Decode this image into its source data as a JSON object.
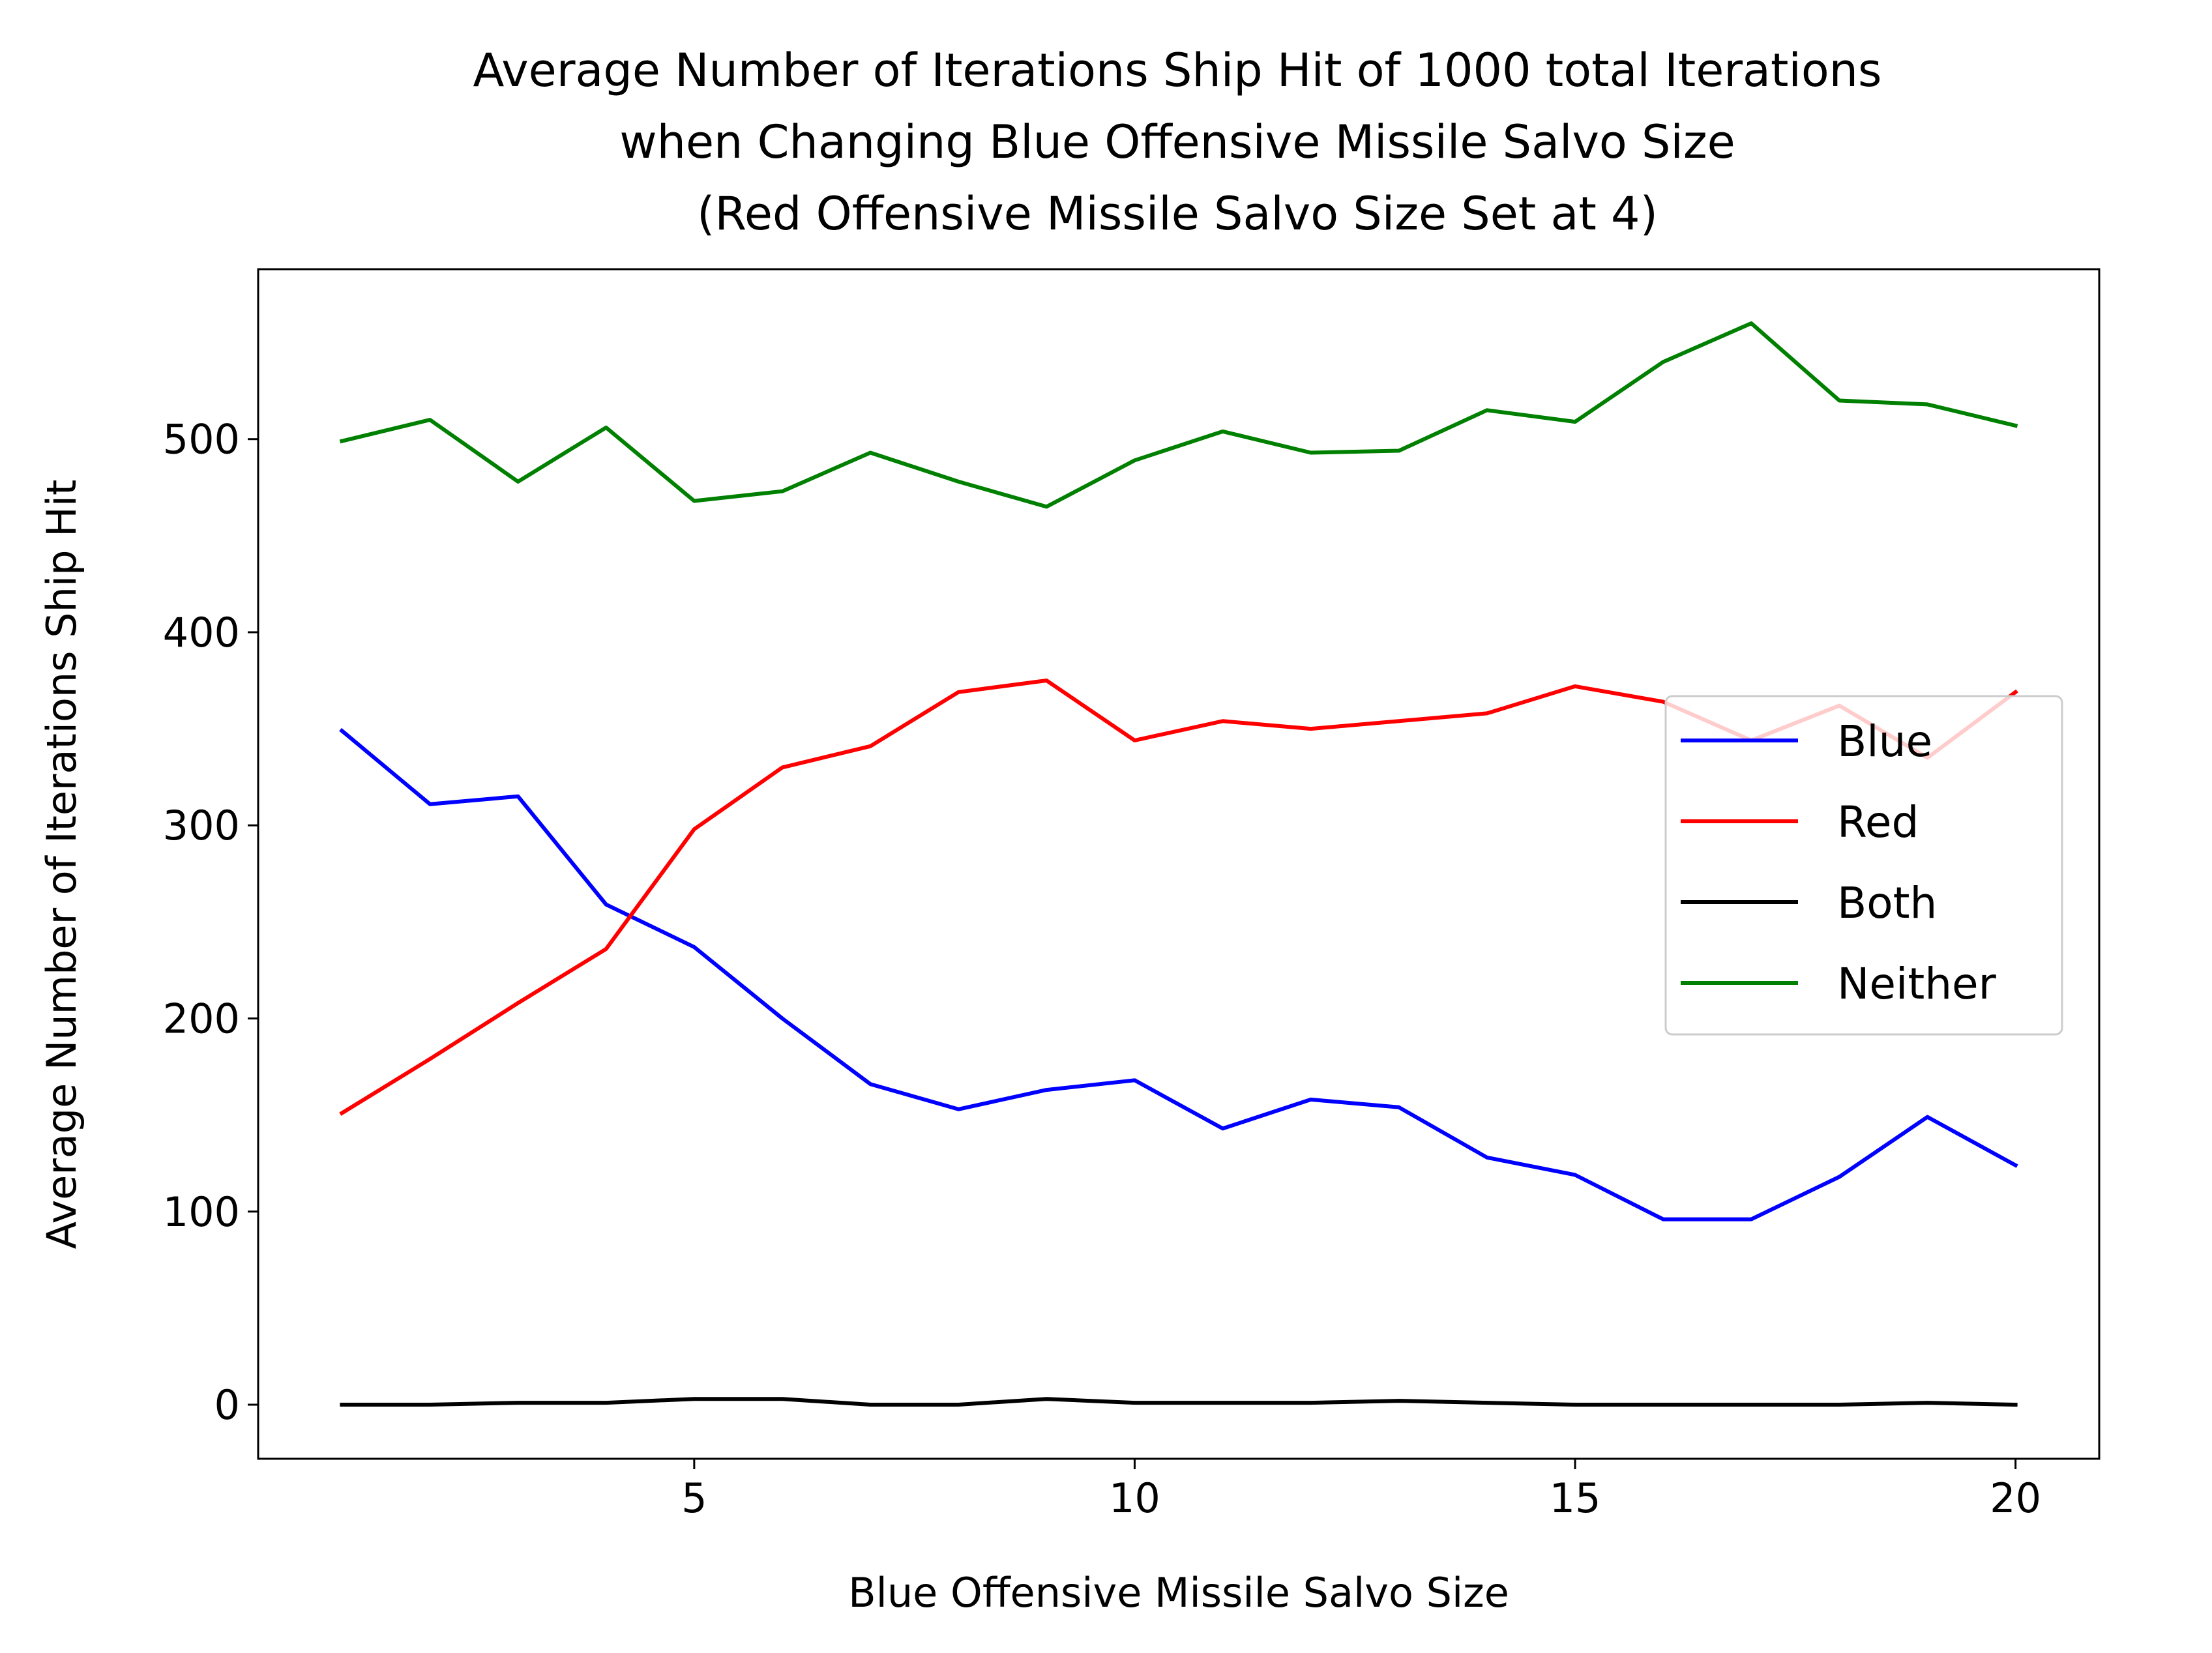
{
  "chart_data": {
    "type": "line",
    "title_lines": [
      "Average Number of Iterations Ship Hit of 1000 total Iterations",
      "when Changing Blue Offensive Missile Salvo Size",
      "(Red Offensive Missile Salvo Size Set at 4)"
    ],
    "xlabel": "Blue Offensive Missile Salvo Size",
    "ylabel": "Average Number of Iterations Ship Hit",
    "xlim": [
      0.05,
      20.95
    ],
    "ylim": [
      -28,
      588
    ],
    "xticks": [
      5,
      10,
      15,
      20
    ],
    "yticks": [
      0,
      100,
      200,
      300,
      400,
      500
    ],
    "grid": false,
    "legend_position": "center-right",
    "x": [
      1,
      2,
      3,
      4,
      5,
      6,
      7,
      8,
      9,
      10,
      11,
      12,
      13,
      14,
      15,
      16,
      17,
      18,
      19,
      20
    ],
    "series": [
      {
        "name": "Blue",
        "color": "#0000ff",
        "values": [
          349,
          311,
          315,
          259,
          237,
          200,
          166,
          153,
          163,
          168,
          143,
          158,
          154,
          128,
          119,
          96,
          96,
          118,
          149,
          124
        ]
      },
      {
        "name": "Red",
        "color": "#ff0000",
        "values": [
          151,
          179,
          208,
          236,
          298,
          330,
          341,
          369,
          375,
          344,
          354,
          350,
          354,
          358,
          372,
          364,
          344,
          362,
          335,
          369
        ]
      },
      {
        "name": "Both",
        "color": "#000000",
        "values": [
          0,
          0,
          1,
          1,
          3,
          3,
          0,
          0,
          3,
          1,
          1,
          1,
          2,
          1,
          0,
          0,
          0,
          0,
          1,
          0
        ]
      },
      {
        "name": "Neither",
        "color": "#008000",
        "values": [
          499,
          510,
          478,
          506,
          468,
          473,
          493,
          478,
          465,
          489,
          504,
          493,
          494,
          515,
          509,
          540,
          560,
          520,
          518,
          507
        ]
      }
    ]
  }
}
